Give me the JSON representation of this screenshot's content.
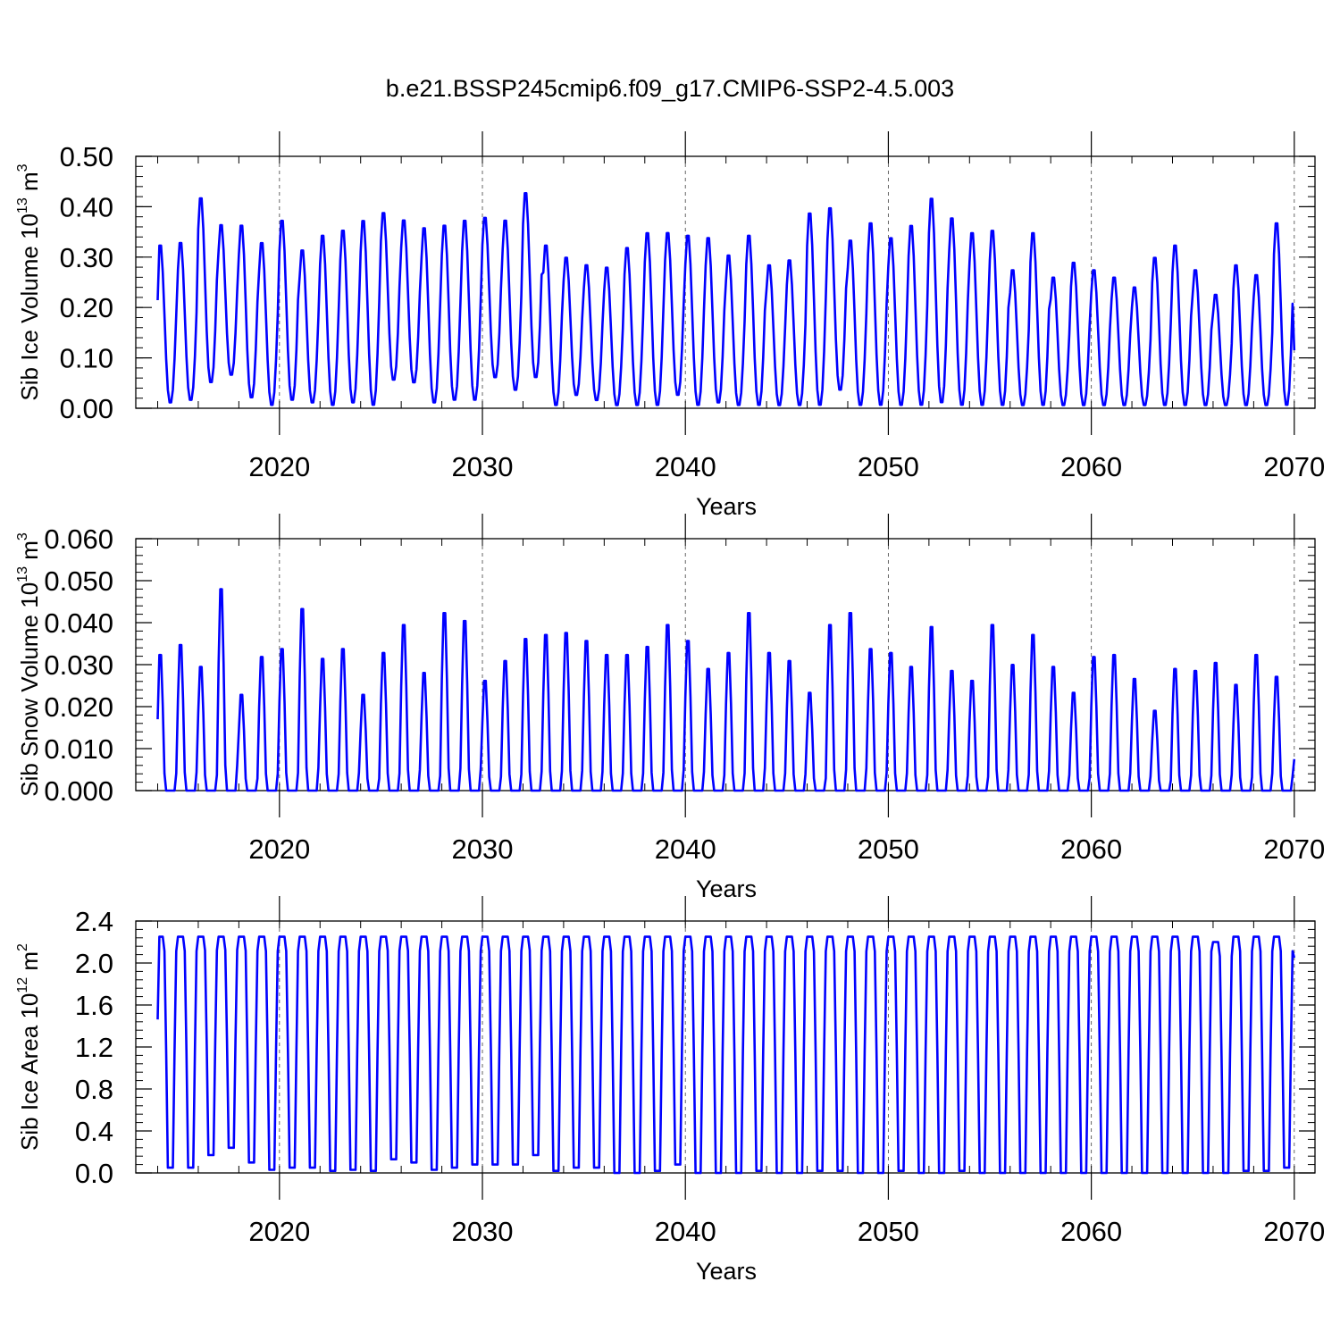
{
  "title": "b.e21.BSSP245cmip6.f09_g17.CMIP6-SSP2-4.5.003",
  "colors": {
    "line": "#0000ff",
    "axis": "#000000",
    "grid": "#555555"
  },
  "chart_data": [
    {
      "type": "line",
      "ylabel_main": "Sib Ice Volume 10",
      "ylabel_exp": "13",
      "ylabel_unit": " m",
      "ylabel_unit_exp": "3",
      "xlabel": "Years",
      "xlim": [
        2014,
        2070
      ],
      "ylim": [
        0,
        0.5
      ],
      "yticks": [
        "0.00",
        "0.10",
        "0.20",
        "0.30",
        "0.40",
        "0.50"
      ],
      "yticks_values": [
        0,
        0.1,
        0.2,
        0.3,
        0.4,
        0.5
      ],
      "xticks": [
        "2020",
        "2030",
        "2040",
        "2050",
        "2060",
        "2070"
      ],
      "xticks_values": [
        2020,
        2030,
        2040,
        2050,
        2060,
        2070
      ],
      "grid": "dashed vertical at decades",
      "series": [
        {
          "name": "Sib Ice Volume",
          "start_year": 2014,
          "seasonal_phase_start_frac": 0.0,
          "annual_max": [
            0.33,
            0.335,
            0.425,
            0.37,
            0.37,
            0.335,
            0.38,
            0.32,
            0.35,
            0.36,
            0.38,
            0.395,
            0.38,
            0.365,
            0.37,
            0.38,
            0.385,
            0.38,
            0.435,
            0.33,
            0.305,
            0.29,
            0.285,
            0.325,
            0.355,
            0.355,
            0.35,
            0.345,
            0.31,
            0.35,
            0.29,
            0.3,
            0.395,
            0.405,
            0.34,
            0.375,
            0.345,
            0.37,
            0.425,
            0.385,
            0.355,
            0.36,
            0.28,
            0.355,
            0.265,
            0.295,
            0.28,
            0.265,
            0.245,
            0.305,
            0.33,
            0.28,
            0.23,
            0.29,
            0.27,
            0.375
          ],
          "annual_min": [
            0.01,
            0.015,
            0.05,
            0.065,
            0.02,
            0.005,
            0.015,
            0.01,
            0.005,
            0.01,
            0.005,
            0.055,
            0.05,
            0.01,
            0.015,
            0.015,
            0.06,
            0.035,
            0.06,
            0.005,
            0.025,
            0.015,
            0.005,
            0.005,
            0.005,
            0.025,
            0.005,
            0.01,
            0.005,
            0.005,
            0.005,
            0.005,
            0.005,
            0.035,
            0.005,
            0.005,
            0.005,
            0.005,
            0.01,
            0.005,
            0.005,
            0.005,
            0.005,
            0.005,
            0.005,
            0.005,
            0.005,
            0.005,
            0.005,
            0.005,
            0.005,
            0.005,
            0.005,
            0.005,
            0.005,
            0.005
          ],
          "end_value": 0.115
        }
      ]
    },
    {
      "type": "line",
      "ylabel_main": "Sib Snow Volume 10",
      "ylabel_exp": "13",
      "ylabel_unit": " m",
      "ylabel_unit_exp": "3",
      "xlabel": "Years",
      "xlim": [
        2014,
        2070
      ],
      "ylim": [
        0,
        0.06
      ],
      "yticks": [
        "0.000",
        "0.010",
        "0.020",
        "0.030",
        "0.040",
        "0.050",
        "0.060"
      ],
      "yticks_values": [
        0,
        0.01,
        0.02,
        0.03,
        0.04,
        0.05,
        0.06
      ],
      "xticks": [
        "2020",
        "2030",
        "2040",
        "2050",
        "2060",
        "2070"
      ],
      "xticks_values": [
        2020,
        2030,
        2040,
        2050,
        2060,
        2070
      ],
      "grid": "dashed vertical at decades",
      "series": [
        {
          "name": "Sib Snow Volume",
          "start_year": 2014,
          "seasonal_phase_start_frac": 0.0,
          "annual_max": [
            0.034,
            0.0365,
            0.031,
            0.0505,
            0.024,
            0.0335,
            0.0355,
            0.0455,
            0.033,
            0.0355,
            0.024,
            0.0345,
            0.0415,
            0.0295,
            0.0445,
            0.0425,
            0.0275,
            0.0325,
            0.038,
            0.039,
            0.0395,
            0.0375,
            0.034,
            0.034,
            0.036,
            0.0415,
            0.0375,
            0.0305,
            0.0345,
            0.0445,
            0.0345,
            0.0325,
            0.0245,
            0.0415,
            0.0445,
            0.0355,
            0.0345,
            0.031,
            0.041,
            0.03,
            0.0275,
            0.0415,
            0.0315,
            0.039,
            0.031,
            0.0245,
            0.0335,
            0.034,
            0.028,
            0.02,
            0.0305,
            0.03,
            0.032,
            0.0265,
            0.034,
            0.0285
          ],
          "annual_min": [
            0,
            0,
            0,
            0,
            0,
            0,
            0,
            0,
            0,
            0,
            0,
            0,
            0,
            0,
            0,
            0,
            0,
            0,
            0,
            0,
            0,
            0,
            0,
            0,
            0,
            0,
            0,
            0,
            0,
            0,
            0,
            0,
            0,
            0,
            0,
            0,
            0,
            0,
            0,
            0,
            0,
            0,
            0,
            0,
            0,
            0,
            0,
            0,
            0,
            0,
            0,
            0,
            0,
            0,
            0,
            0
          ],
          "start_value": 0.017,
          "end_value": 0.0075
        }
      ]
    },
    {
      "type": "line",
      "ylabel_main": "Sib Ice Area 10",
      "ylabel_exp": "12",
      "ylabel_unit": " m",
      "ylabel_unit_exp": "2",
      "xlabel": "Years",
      "xlim": [
        2014,
        2070
      ],
      "ylim": [
        0,
        2.4
      ],
      "yticks": [
        "0.0",
        "0.4",
        "0.8",
        "1.2",
        "1.6",
        "2.0",
        "2.4"
      ],
      "yticks_values": [
        0,
        0.4,
        0.8,
        1.2,
        1.6,
        2.0,
        2.4
      ],
      "xticks": [
        "2020",
        "2030",
        "2040",
        "2050",
        "2060",
        "2070"
      ],
      "xticks_values": [
        2020,
        2030,
        2040,
        2050,
        2060,
        2070
      ],
      "grid": "dashed vertical at decades",
      "series": [
        {
          "name": "Sib Ice Area",
          "start_year": 2014,
          "seasonal_phase_start_frac": 0.0,
          "annual_max": [
            2.25,
            2.25,
            2.25,
            2.25,
            2.25,
            2.25,
            2.25,
            2.25,
            2.25,
            2.25,
            2.25,
            2.25,
            2.25,
            2.25,
            2.25,
            2.25,
            2.25,
            2.25,
            2.25,
            2.25,
            2.25,
            2.25,
            2.25,
            2.25,
            2.25,
            2.25,
            2.25,
            2.25,
            2.25,
            2.25,
            2.25,
            2.25,
            2.25,
            2.25,
            2.25,
            2.25,
            2.25,
            2.25,
            2.25,
            2.25,
            2.25,
            2.25,
            2.25,
            2.25,
            2.25,
            2.25,
            2.25,
            2.25,
            2.25,
            2.25,
            2.25,
            2.25,
            2.2,
            2.25,
            2.25,
            2.25
          ],
          "annual_min": [
            0.05,
            0.05,
            0.17,
            0.24,
            0.1,
            0.03,
            0.05,
            0.05,
            0.02,
            0.03,
            0.02,
            0.13,
            0.1,
            0.03,
            0.05,
            0.08,
            0.08,
            0.08,
            0.17,
            0.02,
            0.05,
            0.05,
            0.0,
            0.0,
            0.02,
            0.08,
            0.0,
            0.0,
            0.0,
            0.02,
            0.0,
            0.0,
            0.02,
            0.02,
            0.0,
            0.0,
            0.02,
            0.0,
            0.0,
            0.02,
            0.0,
            0.0,
            0.0,
            0.0,
            0.0,
            0.0,
            0.0,
            0.0,
            0.0,
            0.0,
            0.0,
            0.0,
            0.0,
            0.02,
            0.02,
            0.05
          ],
          "end_value": 2.05
        }
      ]
    }
  ]
}
